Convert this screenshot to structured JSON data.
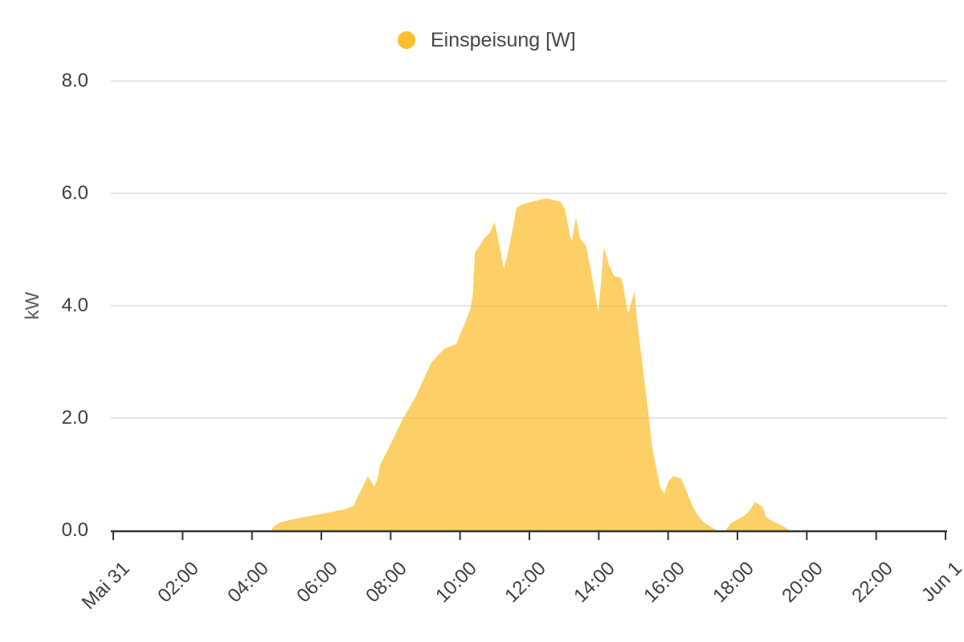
{
  "legend": {
    "items": [
      {
        "label": "Einspeisung [W]",
        "color": "#fbbe2d"
      }
    ]
  },
  "y_axis": {
    "title": "kW",
    "ticks": [
      {
        "value": 0,
        "label": "0.0"
      },
      {
        "value": 2,
        "label": "2.0"
      },
      {
        "value": 4,
        "label": "4.0"
      },
      {
        "value": 6,
        "label": "6.0"
      },
      {
        "value": 8,
        "label": "8.0"
      }
    ]
  },
  "x_axis": {
    "ticks": [
      {
        "hour": 0,
        "label": "Mai 31"
      },
      {
        "hour": 2,
        "label": "02:00"
      },
      {
        "hour": 4,
        "label": "04:00"
      },
      {
        "hour": 6,
        "label": "06:00"
      },
      {
        "hour": 8,
        "label": "08:00"
      },
      {
        "hour": 10,
        "label": "10:00"
      },
      {
        "hour": 12,
        "label": "12:00"
      },
      {
        "hour": 14,
        "label": "14:00"
      },
      {
        "hour": 16,
        "label": "16:00"
      },
      {
        "hour": 18,
        "label": "18:00"
      },
      {
        "hour": 20,
        "label": "20:00"
      },
      {
        "hour": 22,
        "label": "22:00"
      },
      {
        "hour": 24,
        "label": "Jun 1"
      }
    ]
  },
  "chart_data": {
    "type": "area",
    "title": "",
    "xlabel": "",
    "ylabel": "kW",
    "ylim": [
      0,
      8
    ],
    "xlim_hours": [
      0,
      24
    ],
    "grid": "horizontal",
    "legend_position": "top-center",
    "x_unit": "time of day (Mai 31 to Jun 1)",
    "y_unit": "kW",
    "series": [
      {
        "name": "Einspeisung [W]",
        "color": "#fbbe2d",
        "fill_opacity": 0.72,
        "points": [
          [
            4.55,
            0.0
          ],
          [
            4.65,
            0.08
          ],
          [
            4.8,
            0.14
          ],
          [
            5.05,
            0.18
          ],
          [
            5.45,
            0.23
          ],
          [
            5.95,
            0.29
          ],
          [
            6.3,
            0.33
          ],
          [
            6.7,
            0.38
          ],
          [
            6.93,
            0.44
          ],
          [
            7.05,
            0.6
          ],
          [
            7.34,
            0.96
          ],
          [
            7.53,
            0.78
          ],
          [
            7.62,
            0.92
          ],
          [
            7.69,
            1.16
          ],
          [
            7.92,
            1.44
          ],
          [
            8.15,
            1.73
          ],
          [
            8.36,
            2.0
          ],
          [
            8.71,
            2.37
          ],
          [
            9.17,
            2.99
          ],
          [
            9.54,
            3.23
          ],
          [
            9.89,
            3.32
          ],
          [
            10.05,
            3.56
          ],
          [
            10.17,
            3.73
          ],
          [
            10.3,
            3.95
          ],
          [
            10.37,
            4.2
          ],
          [
            10.43,
            4.95
          ],
          [
            10.55,
            5.05
          ],
          [
            10.68,
            5.19
          ],
          [
            10.86,
            5.3
          ],
          [
            11.0,
            5.49
          ],
          [
            11.1,
            5.19
          ],
          [
            11.26,
            4.66
          ],
          [
            11.37,
            4.91
          ],
          [
            11.51,
            5.34
          ],
          [
            11.63,
            5.75
          ],
          [
            11.79,
            5.8
          ],
          [
            12.0,
            5.84
          ],
          [
            12.18,
            5.87
          ],
          [
            12.4,
            5.9
          ],
          [
            12.53,
            5.91
          ],
          [
            12.7,
            5.88
          ],
          [
            12.88,
            5.86
          ],
          [
            13.02,
            5.73
          ],
          [
            13.18,
            5.23
          ],
          [
            13.23,
            5.16
          ],
          [
            13.34,
            5.57
          ],
          [
            13.46,
            5.2
          ],
          [
            13.64,
            5.06
          ],
          [
            13.99,
            3.9
          ],
          [
            14.15,
            5.04
          ],
          [
            14.29,
            4.73
          ],
          [
            14.45,
            4.52
          ],
          [
            14.64,
            4.5
          ],
          [
            14.69,
            4.4
          ],
          [
            14.85,
            3.87
          ],
          [
            15.03,
            4.26
          ],
          [
            15.1,
            3.77
          ],
          [
            15.22,
            3.16
          ],
          [
            15.31,
            2.69
          ],
          [
            15.43,
            2.09
          ],
          [
            15.54,
            1.49
          ],
          [
            15.66,
            1.11
          ],
          [
            15.77,
            0.77
          ],
          [
            15.89,
            0.66
          ],
          [
            16.01,
            0.87
          ],
          [
            16.15,
            0.97
          ],
          [
            16.38,
            0.92
          ],
          [
            16.49,
            0.76
          ],
          [
            16.7,
            0.44
          ],
          [
            16.82,
            0.3
          ],
          [
            17.0,
            0.16
          ],
          [
            17.23,
            0.06
          ],
          [
            17.42,
            0.0
          ],
          [
            17.66,
            0.0
          ],
          [
            17.81,
            0.13
          ],
          [
            18.16,
            0.25
          ],
          [
            18.32,
            0.33
          ],
          [
            18.51,
            0.51
          ],
          [
            18.74,
            0.41
          ],
          [
            18.81,
            0.25
          ],
          [
            19.02,
            0.16
          ],
          [
            19.2,
            0.11
          ],
          [
            19.35,
            0.06
          ],
          [
            19.5,
            0.0
          ]
        ]
      }
    ],
    "style": {
      "gridline_color": "#e4e4e4",
      "axis_line_color": "#333333",
      "tick_label_color": "#3f3f3f",
      "axis_title_color": "#5c5c5c"
    }
  }
}
